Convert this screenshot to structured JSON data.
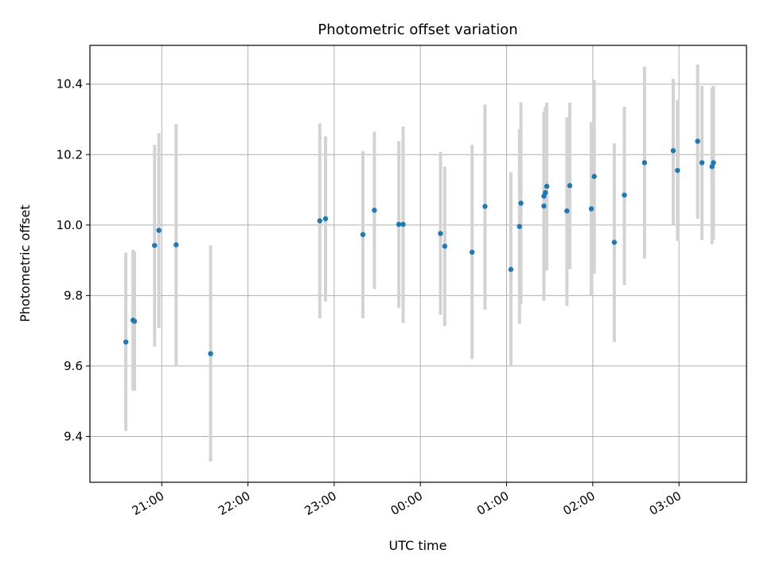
{
  "chart_data": {
    "type": "scatter",
    "title": "Photometric offset variation",
    "xlabel": "UTC time",
    "ylabel": "Photometric offset",
    "x_axis": {
      "kind": "time",
      "range": [
        "20:10",
        "03:47"
      ],
      "ticks": [
        "21:00",
        "22:00",
        "23:00",
        "00:00",
        "01:00",
        "02:00",
        "03:00"
      ]
    },
    "y_axis": {
      "range": [
        9.27,
        10.51
      ],
      "ticks": [
        "9.4",
        "9.6",
        "9.8",
        "10.0",
        "10.2",
        "10.4"
      ]
    },
    "grid": true,
    "colors": {
      "points": "#1f77b4",
      "errorbars": "#d3d3d3",
      "grid": "#b0b0b0"
    },
    "points": [
      {
        "x": "20:35",
        "y": 9.668,
        "lo": 9.415,
        "hi": 9.922
      },
      {
        "x": "20:40",
        "y": 9.73,
        "lo": 9.53,
        "hi": 9.93
      },
      {
        "x": "20:41",
        "y": 9.727,
        "lo": 9.53,
        "hi": 9.925
      },
      {
        "x": "20:55",
        "y": 9.942,
        "lo": 9.655,
        "hi": 10.228
      },
      {
        "x": "20:58",
        "y": 9.985,
        "lo": 9.708,
        "hi": 10.261
      },
      {
        "x": "21:10",
        "y": 9.944,
        "lo": 9.6,
        "hi": 10.286
      },
      {
        "x": "21:34",
        "y": 9.635,
        "lo": 9.329,
        "hi": 9.942
      },
      {
        "x": "22:50",
        "y": 10.012,
        "lo": 9.735,
        "hi": 10.288
      },
      {
        "x": "22:54",
        "y": 10.018,
        "lo": 9.783,
        "hi": 10.252
      },
      {
        "x": "23:20",
        "y": 9.973,
        "lo": 9.735,
        "hi": 10.21
      },
      {
        "x": "23:28",
        "y": 10.042,
        "lo": 9.818,
        "hi": 10.265
      },
      {
        "x": "23:45",
        "y": 10.002,
        "lo": 9.765,
        "hi": 10.238
      },
      {
        "x": "23:48",
        "y": 10.002,
        "lo": 9.722,
        "hi": 10.28
      },
      {
        "x": "00:14",
        "y": 9.976,
        "lo": 9.745,
        "hi": 10.208
      },
      {
        "x": "00:17",
        "y": 9.94,
        "lo": 9.713,
        "hi": 10.166
      },
      {
        "x": "00:36",
        "y": 9.923,
        "lo": 9.62,
        "hi": 10.227
      },
      {
        "x": "00:45",
        "y": 10.053,
        "lo": 9.76,
        "hi": 10.342
      },
      {
        "x": "01:03",
        "y": 9.874,
        "lo": 9.598,
        "hi": 10.15
      },
      {
        "x": "01:09",
        "y": 9.996,
        "lo": 9.72,
        "hi": 10.272
      },
      {
        "x": "01:10",
        "y": 10.062,
        "lo": 9.775,
        "hi": 10.348
      },
      {
        "x": "01:26",
        "y": 10.082,
        "lo": 9.84,
        "hi": 10.322
      },
      {
        "x": "01:26",
        "y": 10.054,
        "lo": 9.785,
        "hi": 10.32
      },
      {
        "x": "01:27",
        "y": 10.092,
        "lo": 9.87,
        "hi": 10.336
      },
      {
        "x": "01:28",
        "y": 10.11,
        "lo": 9.872,
        "hi": 10.348
      },
      {
        "x": "01:42",
        "y": 10.04,
        "lo": 9.77,
        "hi": 10.306
      },
      {
        "x": "01:44",
        "y": 10.112,
        "lo": 9.875,
        "hi": 10.348
      },
      {
        "x": "01:59",
        "y": 10.046,
        "lo": 9.8,
        "hi": 10.292
      },
      {
        "x": "02:01",
        "y": 10.138,
        "lo": 9.862,
        "hi": 10.412
      },
      {
        "x": "02:15",
        "y": 9.951,
        "lo": 9.668,
        "hi": 10.232
      },
      {
        "x": "02:22",
        "y": 10.085,
        "lo": 9.83,
        "hi": 10.336
      },
      {
        "x": "02:36",
        "y": 10.177,
        "lo": 9.905,
        "hi": 10.45
      },
      {
        "x": "02:56",
        "y": 10.211,
        "lo": 10.002,
        "hi": 10.415
      },
      {
        "x": "02:59",
        "y": 10.155,
        "lo": 9.955,
        "hi": 10.355
      },
      {
        "x": "03:13",
        "y": 10.238,
        "lo": 10.018,
        "hi": 10.456
      },
      {
        "x": "03:16",
        "y": 10.177,
        "lo": 9.958,
        "hi": 10.395
      },
      {
        "x": "03:23",
        "y": 10.166,
        "lo": 9.945,
        "hi": 10.39
      },
      {
        "x": "03:24",
        "y": 10.177,
        "lo": 9.958,
        "hi": 10.395
      }
    ]
  }
}
